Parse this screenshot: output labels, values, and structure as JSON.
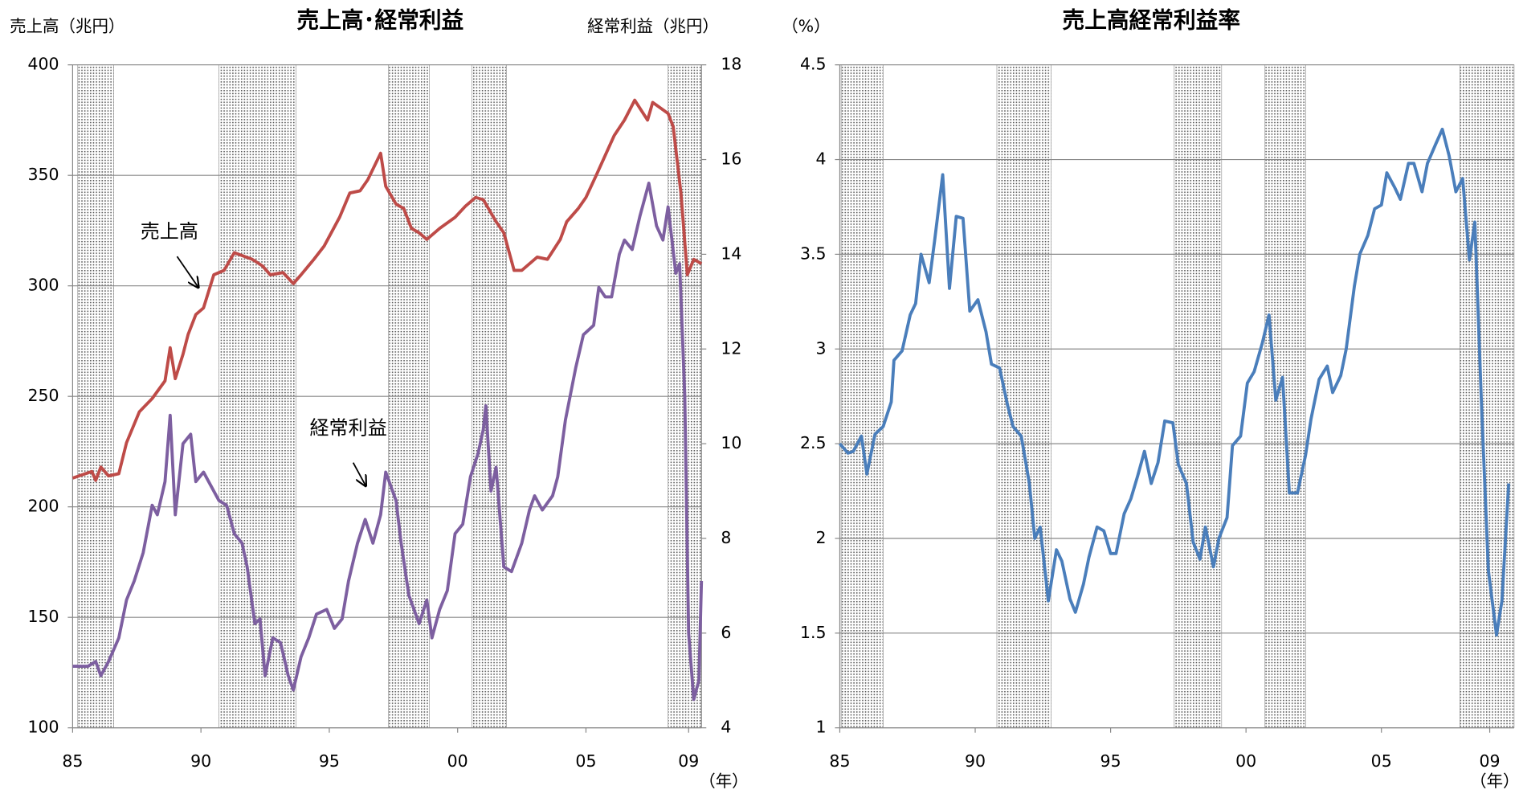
{
  "chart_data": [
    {
      "type": "line",
      "title": "売上高･経常利益",
      "ylabel": "売上高（兆円）",
      "y2label": "経常利益（兆円）",
      "xlabel": "（年）",
      "xlim": [
        1985,
        2009.5
      ],
      "xticks": [
        {
          "value": 1985,
          "label": "85"
        },
        {
          "value": 1990,
          "label": "90"
        },
        {
          "value": 1995,
          "label": "95"
        },
        {
          "value": 2000,
          "label": "00"
        },
        {
          "value": 2005,
          "label": "05"
        },
        {
          "value": 2009,
          "label": "09"
        }
      ],
      "ylim": [
        100,
        400
      ],
      "yticks": [
        100,
        150,
        200,
        250,
        300,
        350,
        400
      ],
      "y2lim": [
        4,
        18
      ],
      "y2ticks": [
        4,
        6,
        8,
        10,
        12,
        14,
        16,
        18
      ],
      "grid": true,
      "shaded": [
        [
          1985.2,
          1986.6
        ],
        [
          1990.7,
          1993.7
        ],
        [
          1997.3,
          1998.9
        ],
        [
          2000.55,
          2001.9
        ],
        [
          2008.2,
          2009.5
        ]
      ],
      "series": [
        {
          "name": "売上高",
          "color": "#be4b48",
          "x": [
            1985,
            1985.75,
            1985.9,
            1986.1,
            1986.4,
            1986.8,
            1987.1,
            1987.6,
            1988.1,
            1988.6,
            1988.8,
            1989.0,
            1989.3,
            1989.5,
            1989.8,
            1990.1,
            1990.5,
            1990.9,
            1991.3,
            1992.0,
            1992.4,
            1992.7,
            1993.2,
            1993.6,
            1993.9,
            1994.4,
            1994.8,
            1995.4,
            1995.8,
            1996.2,
            1996.5,
            1997.0,
            1997.2,
            1997.6,
            1997.9,
            1998.2,
            1998.5,
            1998.8,
            1999.3,
            1999.9,
            2000.3,
            2000.7,
            2001.0,
            2001.5,
            2001.8,
            2002.2,
            2002.5,
            2003.1,
            2003.5,
            2004.0,
            2004.25,
            2004.7,
            2005.0,
            2005.4,
            2005.75,
            2006.1,
            2006.5,
            2006.9,
            2007.4,
            2007.6,
            2008.2,
            2008.4,
            2008.7,
            2008.95,
            2009.2,
            2009.5
          ],
          "values": [
            213,
            216,
            212,
            218,
            214,
            215,
            229,
            243,
            249,
            257,
            272,
            258,
            269,
            278,
            287,
            290,
            305,
            307,
            315,
            312,
            309,
            305,
            306,
            301,
            305,
            312,
            318,
            331,
            342,
            343,
            348,
            360,
            345,
            337,
            335,
            326,
            324,
            321,
            326,
            331,
            336,
            340,
            339,
            329,
            324,
            307,
            307,
            313,
            312,
            321,
            329,
            335,
            340,
            350,
            359,
            368,
            375,
            384,
            375,
            383,
            378,
            372,
            342,
            305,
            312,
            310
          ]
        },
        {
          "name": "経常利益",
          "color": "#7d5fa0",
          "axis": "y2",
          "x": [
            1985,
            1985.6,
            1985.9,
            1986.1,
            1986.4,
            1986.8,
            1987.1,
            1987.4,
            1987.75,
            1988.1,
            1988.3,
            1988.6,
            1988.8,
            1989.0,
            1989.3,
            1989.6,
            1989.8,
            1990.1,
            1990.4,
            1990.7,
            1991.0,
            1991.3,
            1991.6,
            1991.8,
            1992.1,
            1992.3,
            1992.5,
            1992.8,
            1993.1,
            1993.4,
            1993.6,
            1993.9,
            1994.2,
            1994.5,
            1994.9,
            1995.2,
            1995.5,
            1995.75,
            1996.1,
            1996.4,
            1996.7,
            1997.0,
            1997.2,
            1997.6,
            1997.8,
            1998.1,
            1998.5,
            1998.8,
            1999.0,
            1999.3,
            1999.6,
            1999.9,
            2000.2,
            2000.5,
            2000.8,
            2001.0,
            2001.1,
            2001.3,
            2001.5,
            2001.8,
            2002.1,
            2002.5,
            2002.8,
            2003.0,
            2003.3,
            2003.7,
            2003.9,
            2004.2,
            2004.6,
            2004.9,
            2005.3,
            2005.5,
            2005.75,
            2006.0,
            2006.3,
            2006.5,
            2006.8,
            2007.1,
            2007.45,
            2007.75,
            2008.0,
            2008.2,
            2008.5,
            2008.65,
            2008.85,
            2009.0,
            2009.2,
            2009.4,
            2009.5
          ],
          "values": [
            5.3,
            5.3,
            5.4,
            5.1,
            5.4,
            5.9,
            6.7,
            7.1,
            7.7,
            8.7,
            8.5,
            9.2,
            10.6,
            8.5,
            10.0,
            10.2,
            9.2,
            9.4,
            9.1,
            8.8,
            8.7,
            8.1,
            7.9,
            7.4,
            6.2,
            6.3,
            5.1,
            5.9,
            5.8,
            5.1,
            4.8,
            5.5,
            5.9,
            6.4,
            6.5,
            6.1,
            6.3,
            7.1,
            7.9,
            8.4,
            7.9,
            8.5,
            9.4,
            8.8,
            7.9,
            6.8,
            6.2,
            6.7,
            5.9,
            6.5,
            6.9,
            8.1,
            8.3,
            9.3,
            9.8,
            10.3,
            10.8,
            9.0,
            9.5,
            7.4,
            7.3,
            7.9,
            8.6,
            8.9,
            8.6,
            8.9,
            9.3,
            10.5,
            11.6,
            12.3,
            12.5,
            13.3,
            13.1,
            13.1,
            14.0,
            14.3,
            14.1,
            14.8,
            15.5,
            14.6,
            14.3,
            15.0,
            13.6,
            13.8,
            11.0,
            6.0,
            4.6,
            5.0,
            7.1
          ]
        }
      ]
    },
    {
      "type": "line",
      "title": "売上高経常利益率",
      "ylabel": "（%）",
      "xlabel": "（年）",
      "xlim": [
        1985,
        2009.9
      ],
      "xticks": [
        {
          "value": 1985,
          "label": "85"
        },
        {
          "value": 1990,
          "label": "90"
        },
        {
          "value": 1995,
          "label": "95"
        },
        {
          "value": 2000,
          "label": "00"
        },
        {
          "value": 2005,
          "label": "05"
        },
        {
          "value": 2009,
          "label": "09"
        }
      ],
      "ylim": [
        1,
        4.5
      ],
      "yticks": [
        1,
        1.5,
        2,
        2.5,
        3,
        3.5,
        4,
        4.5
      ],
      "grid": true,
      "shaded": [
        [
          1985.05,
          1986.6
        ],
        [
          1990.8,
          1992.8
        ],
        [
          1997.35,
          1999.1
        ],
        [
          2000.7,
          2002.2
        ],
        [
          2007.9,
          2009.9
        ]
      ],
      "series": [
        {
          "color": "#4a7ebb",
          "x": [
            1985,
            1985.3,
            1985.5,
            1985.8,
            1986.0,
            1986.3,
            1986.6,
            1986.9,
            1987.0,
            1987.3,
            1987.6,
            1987.8,
            1988.0,
            1988.3,
            1988.5,
            1988.8,
            1989.05,
            1989.3,
            1989.55,
            1989.8,
            1990.1,
            1990.4,
            1990.6,
            1990.9,
            1991.2,
            1991.4,
            1991.7,
            1992.0,
            1992.2,
            1992.4,
            1992.7,
            1993.0,
            1993.2,
            1993.5,
            1993.7,
            1994.0,
            1994.2,
            1994.5,
            1994.75,
            1995.0,
            1995.2,
            1995.5,
            1995.75,
            1996.0,
            1996.25,
            1996.5,
            1996.75,
            1997.0,
            1997.3,
            1997.5,
            1997.8,
            1998.05,
            1998.3,
            1998.5,
            1998.8,
            1999.0,
            1999.3,
            1999.5,
            1999.8,
            2000.05,
            2000.3,
            2000.6,
            2000.85,
            2001.1,
            2001.35,
            2001.6,
            2001.9,
            2002.2,
            2002.4,
            2002.7,
            2003.0,
            2003.2,
            2003.5,
            2003.7,
            2004.0,
            2004.2,
            2004.5,
            2004.75,
            2005.0,
            2005.2,
            2005.5,
            2005.7,
            2006.0,
            2006.2,
            2006.5,
            2006.7,
            2007.0,
            2007.25,
            2007.5,
            2007.75,
            2008.0,
            2008.25,
            2008.45,
            2008.7,
            2008.95,
            2009.25,
            2009.45,
            2009.7
          ],
          "values": [
            2.5,
            2.45,
            2.46,
            2.54,
            2.34,
            2.55,
            2.59,
            2.72,
            2.94,
            2.99,
            3.18,
            3.24,
            3.5,
            3.35,
            3.57,
            3.92,
            3.32,
            3.7,
            3.69,
            3.2,
            3.26,
            3.09,
            2.92,
            2.9,
            2.7,
            2.59,
            2.54,
            2.29,
            2.0,
            2.06,
            1.67,
            1.94,
            1.88,
            1.68,
            1.61,
            1.76,
            1.9,
            2.06,
            2.04,
            1.92,
            1.92,
            2.13,
            2.21,
            2.33,
            2.46,
            2.29,
            2.4,
            2.62,
            2.61,
            2.39,
            2.29,
            1.98,
            1.89,
            2.06,
            1.85,
            2.0,
            2.11,
            2.49,
            2.54,
            2.82,
            2.88,
            3.03,
            3.18,
            2.73,
            2.85,
            2.24,
            2.24,
            2.44,
            2.63,
            2.84,
            2.91,
            2.77,
            2.86,
            3.0,
            3.33,
            3.5,
            3.6,
            3.74,
            3.76,
            3.93,
            3.85,
            3.79,
            3.98,
            3.98,
            3.83,
            3.98,
            4.08,
            4.16,
            4.02,
            3.83,
            3.9,
            3.47,
            3.67,
            2.69,
            1.83,
            1.49,
            1.67,
            2.29
          ]
        }
      ]
    }
  ]
}
